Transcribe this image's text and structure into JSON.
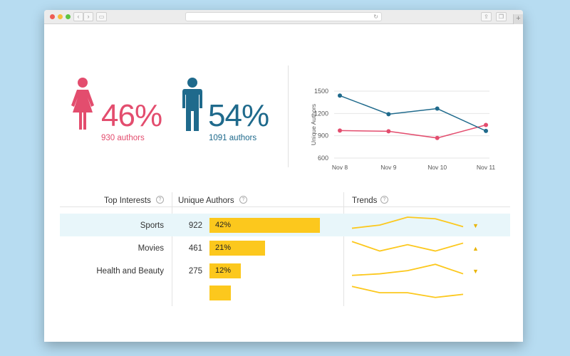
{
  "demographics": {
    "female": {
      "percent": "46%",
      "authors": "930 authors",
      "color": "#e34d6e",
      "icon": "female-person-icon"
    },
    "male": {
      "percent": "54%",
      "authors": "1091 authors",
      "color": "#1f6a8c",
      "icon": "male-person-icon"
    }
  },
  "chart_data": {
    "type": "line",
    "categories": [
      "Nov 8",
      "Nov 9",
      "Nov 10",
      "Nov 11"
    ],
    "ylabel": "Unique Authors",
    "ylim": [
      600,
      1500
    ],
    "yticks": [
      "1500",
      "1200",
      "900",
      "600"
    ],
    "series": [
      {
        "name": "Female",
        "color": "#e34d6e",
        "values": [
          970,
          960,
          870,
          1045
        ]
      },
      {
        "name": "Male",
        "color": "#1f6a8c",
        "values": [
          1440,
          1190,
          1265,
          965
        ]
      }
    ],
    "legend_position": "bottom"
  },
  "table": {
    "headers": {
      "interests": "Top Interests",
      "authors": "Unique Authors",
      "trends": "Trends"
    },
    "rows": [
      {
        "label": "Sports",
        "count": "922",
        "percent": "42%",
        "share": 0.42,
        "trend": "▼",
        "sparkline": [
          2,
          4,
          9,
          8,
          3
        ]
      },
      {
        "label": "Movies",
        "count": "461",
        "percent": "21%",
        "share": 0.21,
        "trend": "▲",
        "sparkline": [
          8,
          2,
          6,
          2,
          7
        ]
      },
      {
        "label": "Health and Beauty",
        "count": "275",
        "percent": "12%",
        "share": 0.12,
        "trend": "▼",
        "sparkline": [
          1,
          2,
          4,
          8,
          2
        ]
      },
      {
        "label": "",
        "count": "",
        "percent": "",
        "share": 0.08,
        "trend": "",
        "sparkline": [
          8,
          4,
          4,
          1,
          3
        ]
      }
    ],
    "bar_color": "#fcc81d"
  }
}
